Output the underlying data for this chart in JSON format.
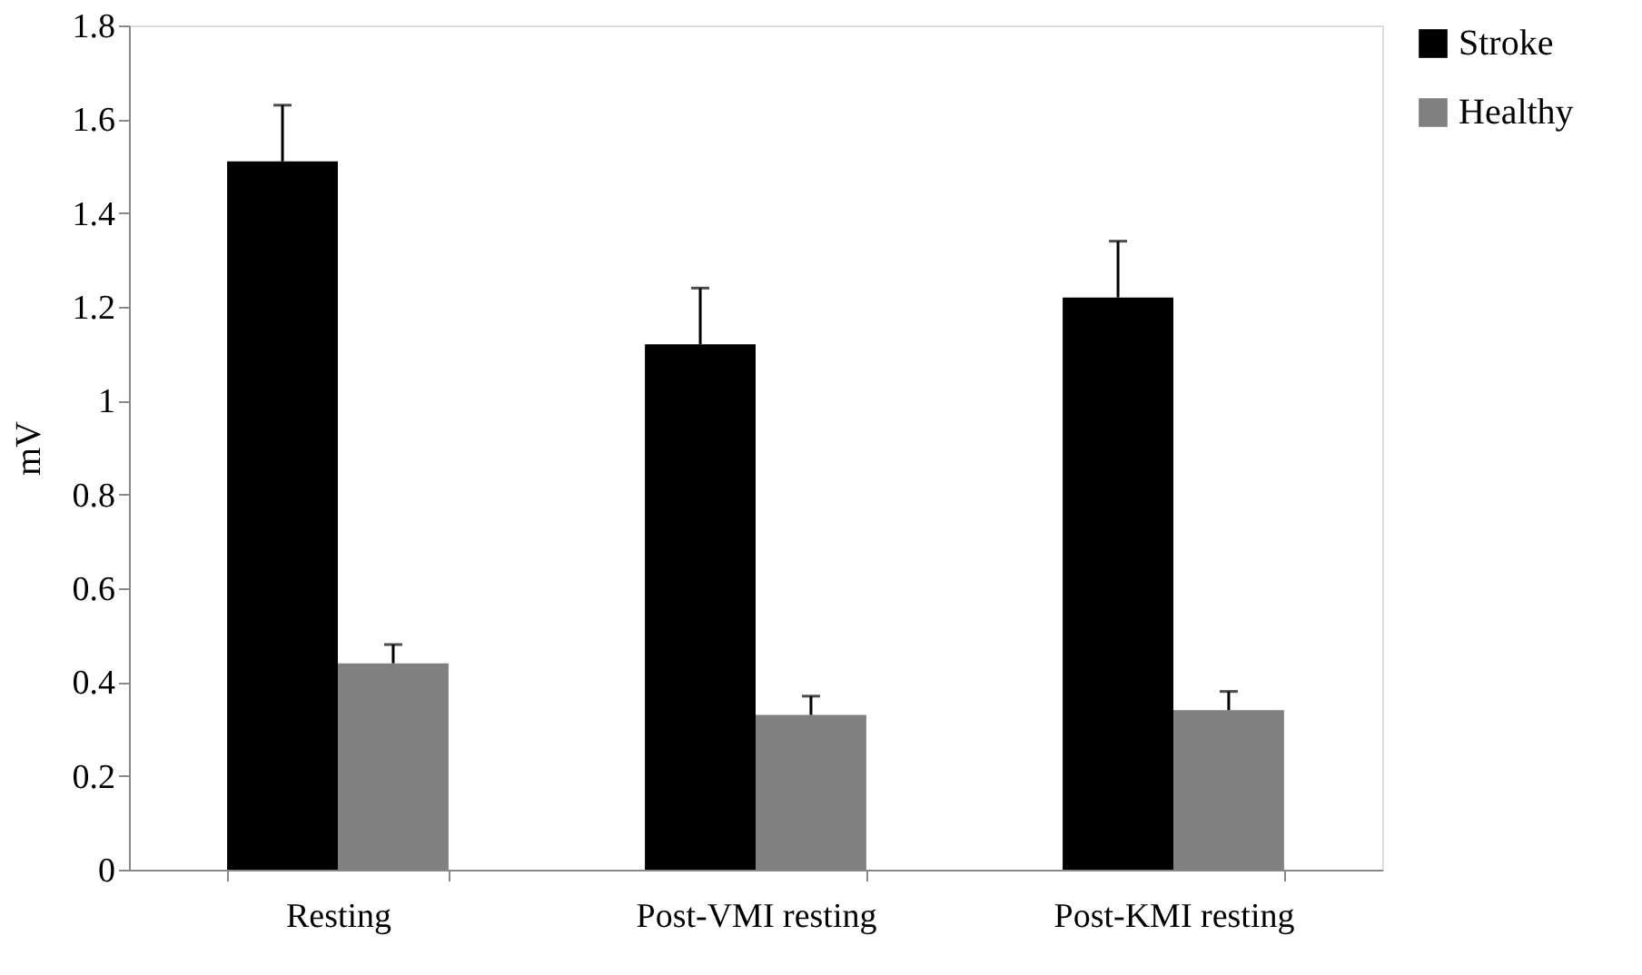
{
  "chart_data": {
    "type": "bar",
    "ylabel": "mV",
    "categories": [
      "Resting",
      "Post-VMI resting",
      "Post-KMI resting"
    ],
    "series": [
      {
        "name": "Stroke",
        "color": "#000000",
        "values": [
          1.51,
          1.12,
          1.22
        ],
        "errors": [
          [
            1.51,
            1.63
          ],
          [
            1.12,
            1.24
          ],
          [
            1.22,
            1.34
          ]
        ]
      },
      {
        "name": "Healthy",
        "color": "#808080",
        "values": [
          0.44,
          0.33,
          0.34
        ],
        "errors": [
          [
            0.44,
            0.48
          ],
          [
            0.33,
            0.37
          ],
          [
            0.34,
            0.38
          ]
        ]
      }
    ],
    "ylim": [
      0,
      1.8
    ],
    "yticks": [
      0,
      0.2,
      0.4,
      0.6,
      0.8,
      1,
      1.2,
      1.4,
      1.6,
      1.8
    ],
    "grid": false,
    "legend": "right"
  }
}
